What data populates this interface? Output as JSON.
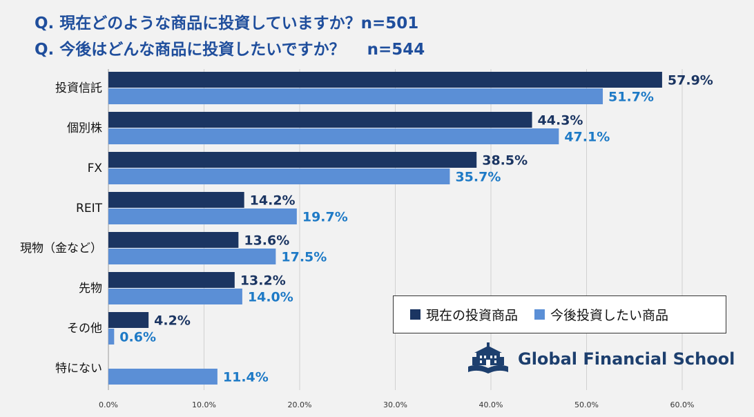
{
  "header": {
    "title_1": "Q. 現在どのような商品に投資していますか？n=501",
    "title_2": "Q. 今後はどんな商品に投資したいですか？    n=544"
  },
  "colors": {
    "current": "#1b3562",
    "future": "#5b8fd6",
    "current_label": "#1b3562",
    "future_label": "#1e7ac6",
    "title": "#1f4e9c",
    "grid": "#d0d0d0"
  },
  "legend": {
    "current": "現在の投資商品",
    "future": "今後投資したい商品"
  },
  "logo": {
    "text": "Global Financial School",
    "icon": "school-building-book-icon"
  },
  "chart_data": {
    "type": "bar",
    "orientation": "horizontal",
    "categories": [
      "投資信託",
      "個別株",
      "FX",
      "REIT",
      "現物（金など）",
      "先物",
      "その他",
      "特にない"
    ],
    "series": [
      {
        "name": "現在の投資商品",
        "values": [
          57.9,
          44.3,
          38.5,
          14.2,
          13.6,
          13.2,
          4.2,
          null
        ]
      },
      {
        "name": "今後投資したい商品",
        "values": [
          51.7,
          47.1,
          35.7,
          19.7,
          17.5,
          14.0,
          0.6,
          11.4
        ]
      }
    ],
    "xlim": [
      0,
      60
    ],
    "x_ticks": [
      "0.0%",
      "10.0%",
      "20.0%",
      "30.0%",
      "40.0%",
      "50.0%",
      "60.0%"
    ],
    "grid": true,
    "legend_position": "bottom-right"
  }
}
